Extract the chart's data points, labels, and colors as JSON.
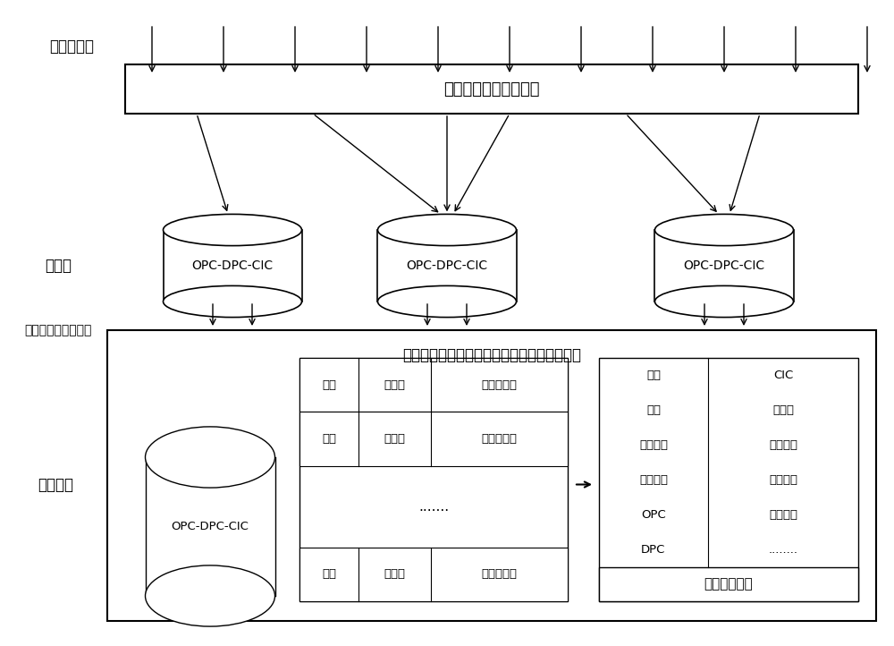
{
  "bg_color": "#ffffff",
  "text_color": "#000000",
  "title_label": "信令数据流",
  "hash_buffer_label": "信令消息哈希分桶缓存",
  "hash_bucket_label": "哈希桶",
  "detect_label": "检测到信令结束消息",
  "aggregate_label": "汇聚压缩",
  "multicore_label": "多核多线程并行执行业务消息记录的无损解析",
  "opc_dpc_cic": "OPC-DPC-CIC",
  "chain_label": "链路",
  "timestamp_label": "时间戳",
  "signal_pkg_label": "信令消息包",
  "dots_label": ".......",
  "summary_label": "信令数据摘要",
  "left_col": [
    "主叫",
    "被叫",
    "起始时间",
    "通话时间",
    "OPC",
    "DPC"
  ],
  "right_col": [
    "CIC",
    "链路号",
    "呼叫类型",
    "通话时长",
    "失败原因",
    "........"
  ]
}
